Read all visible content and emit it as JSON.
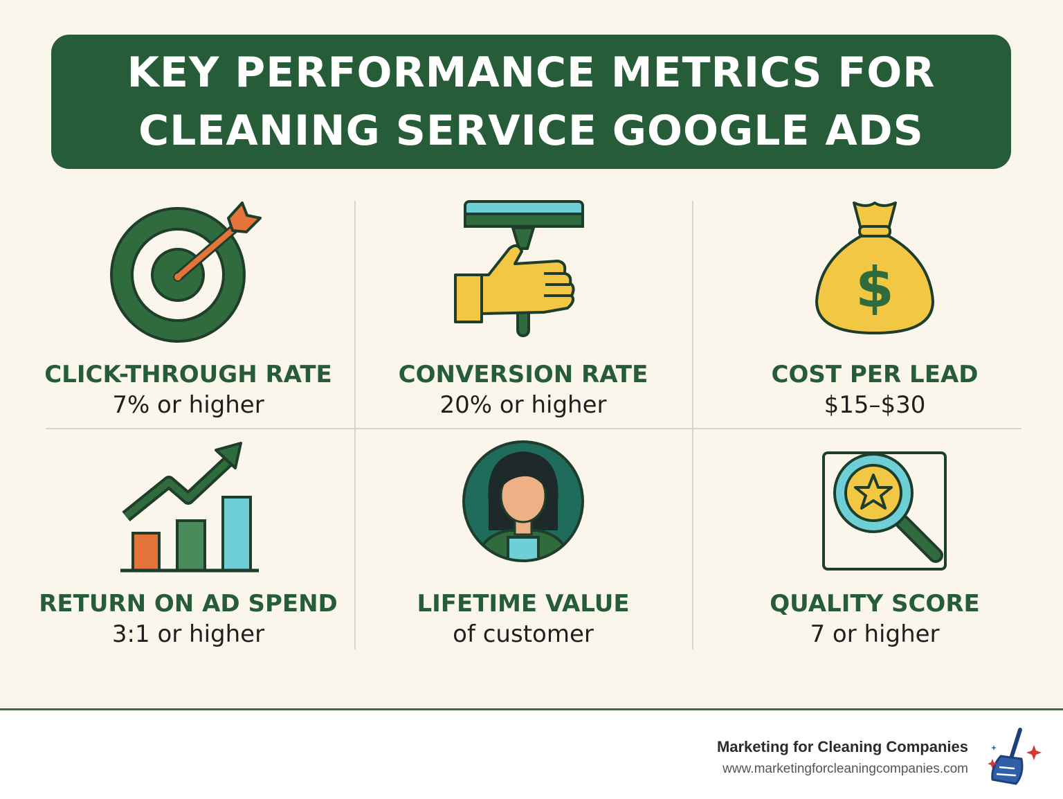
{
  "title": {
    "line1": "KEY PERFORMANCE METRICS FOR",
    "line2": "CLEANING SERVICE GOOGLE ADS"
  },
  "metrics": [
    {
      "title": "CLICK-THROUGH RATE",
      "value": "7% or higher",
      "icon": "target-arrow-icon"
    },
    {
      "title": "CONVERSION RATE",
      "value": "20% or higher",
      "icon": "hand-squeegee-icon"
    },
    {
      "title": "COST PER LEAD",
      "value": "$15–$30",
      "icon": "money-bag-icon"
    },
    {
      "title": "RETURN ON AD SPEND",
      "value": "3:1 or higher",
      "icon": "growth-chart-icon"
    },
    {
      "title": "LIFETIME VALUE",
      "value": "of customer",
      "icon": "customer-avatar-icon"
    },
    {
      "title": "QUALITY SCORE",
      "value": "7 or higher",
      "icon": "magnifier-star-icon"
    }
  ],
  "footer": {
    "brand_name": "Marketing for Cleaning Companies",
    "url": "www.marketingforcleaningcompanies.com",
    "logo_icon": "broom-sparkle-icon"
  },
  "colors": {
    "green": "#265c38",
    "yellow": "#f2c744",
    "teal": "#6fcfd6",
    "orange": "#e5743a",
    "background": "#fbf6ec"
  }
}
